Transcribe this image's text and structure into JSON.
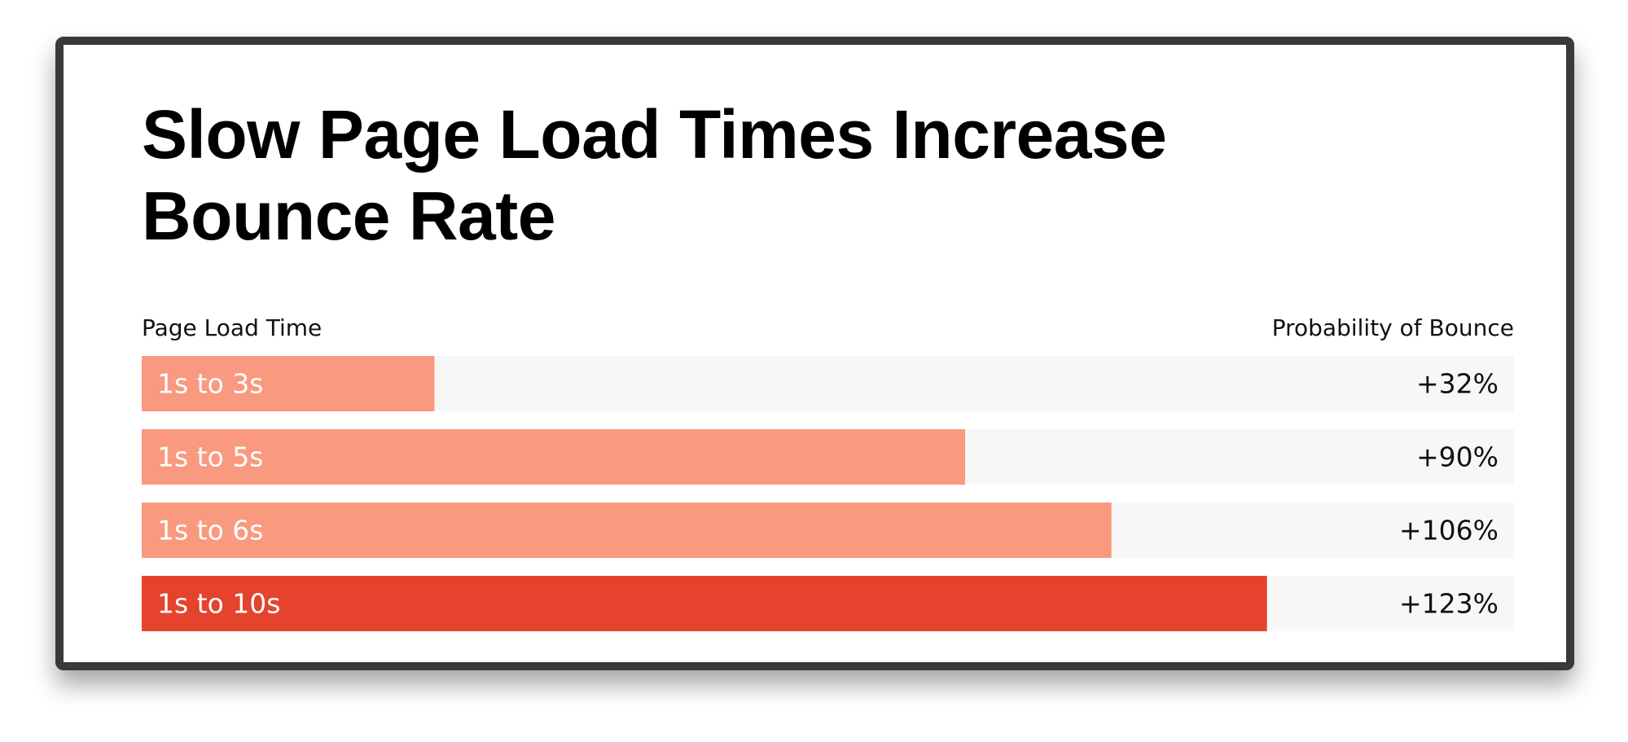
{
  "chart_data": {
    "type": "bar",
    "orientation": "horizontal",
    "title": "Slow Page Load Times Increase Bounce Rate",
    "category_axis_label": "Page Load Time",
    "value_axis_label": "Probability of Bounce",
    "categories": [
      "1s to 3s",
      "1s to 5s",
      "1s to 6s",
      "1s to 10s"
    ],
    "values": [
      32,
      90,
      106,
      123
    ],
    "value_labels": [
      "+32%",
      "+90%",
      "+106%",
      "+123%"
    ],
    "colors": [
      "#f99a80",
      "#f99a80",
      "#f99a80",
      "#e5432d"
    ],
    "track_color": "#f7f7f7",
    "xlim": [
      0,
      150
    ]
  }
}
